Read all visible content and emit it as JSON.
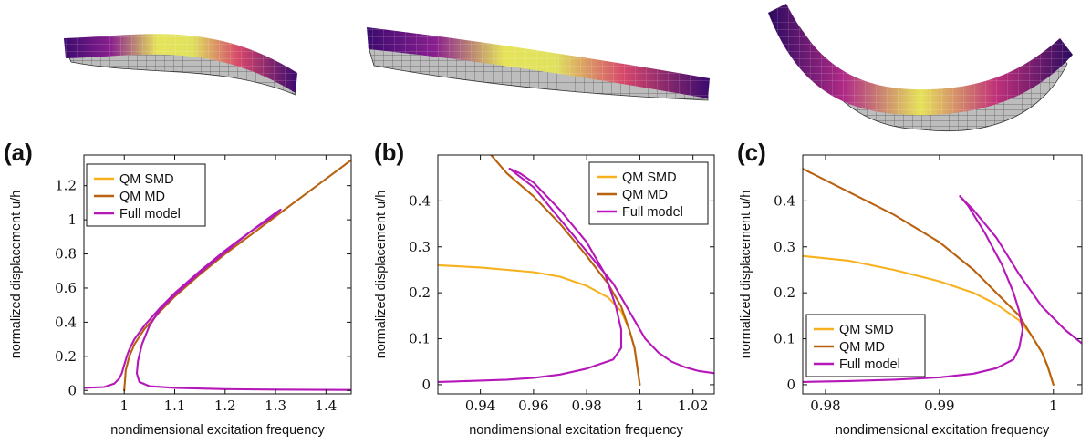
{
  "figure": {
    "series_colors": {
      "QM SMD": "#F7B11E",
      "QM MD": "#B8610F",
      "Full model": "#B517B8"
    },
    "beam_colors": [
      "#3a0a6e",
      "#8a1f8f",
      "#d6476b",
      "#f39c3a",
      "#e6f05a"
    ]
  },
  "chart_data": [
    {
      "panel": "(a)",
      "type": "line",
      "xlabel": "nondimensional excitation frequency",
      "ylabel": "normalized displacement u/h",
      "xlim": [
        0.92,
        1.45
      ],
      "ylim": [
        -0.02,
        1.38
      ],
      "xticks": [
        1,
        1.1,
        1.2,
        1.3,
        1.4
      ],
      "xtick_labels": [
        "1",
        "1.1",
        "1.2",
        "1.3",
        "1.4"
      ],
      "yticks": [
        0,
        0.2,
        0.4,
        0.6,
        0.8,
        1,
        1.2
      ],
      "ytick_labels": [
        "0",
        "0.2",
        "0.4",
        "0.6",
        "0.8",
        "1",
        "1.2"
      ],
      "legend": [
        "QM SMD",
        "QM MD",
        "Full model"
      ],
      "legend_position": "top-left",
      "series": [
        {
          "name": "QM SMD",
          "x": [
            1.0,
            1.0
          ],
          "y": [
            0.0,
            0.02
          ]
        },
        {
          "name": "QM MD",
          "x": [
            1.0,
            1.003,
            1.01,
            1.02,
            1.04,
            1.07,
            1.1,
            1.15,
            1.2,
            1.25,
            1.3,
            1.35,
            1.4,
            1.45
          ],
          "y": [
            0.0,
            0.12,
            0.2,
            0.27,
            0.36,
            0.46,
            0.55,
            0.68,
            0.8,
            0.91,
            1.02,
            1.13,
            1.24,
            1.35
          ]
        },
        {
          "name": "Full model",
          "x": [
            0.92,
            0.96,
            0.98,
            0.99,
            0.995,
            1.0,
            1.005,
            1.01,
            1.02,
            1.04,
            1.07,
            1.1,
            1.15,
            1.2,
            1.25,
            1.3,
            1.31,
            1.3,
            1.25,
            1.2,
            1.15,
            1.1,
            1.07,
            1.05,
            1.035,
            1.027,
            1.025,
            1.03,
            1.05,
            1.1,
            1.2,
            1.3,
            1.45
          ],
          "y": [
            0.015,
            0.02,
            0.04,
            0.07,
            0.1,
            0.15,
            0.2,
            0.24,
            0.3,
            0.38,
            0.48,
            0.57,
            0.7,
            0.82,
            0.93,
            1.03,
            1.06,
            1.04,
            0.93,
            0.81,
            0.69,
            0.56,
            0.47,
            0.38,
            0.27,
            0.17,
            0.1,
            0.05,
            0.025,
            0.015,
            0.008,
            0.005,
            0.003
          ]
        }
      ]
    },
    {
      "panel": "(b)",
      "type": "line",
      "xlabel": "nondimensional excitation frequency",
      "ylabel": "normalized displacement u/h",
      "xlim": [
        0.924,
        1.028
      ],
      "ylim": [
        -0.02,
        0.5
      ],
      "xticks": [
        0.94,
        0.96,
        0.98,
        1,
        1.02
      ],
      "xtick_labels": [
        "0.94",
        "0.96",
        "0.98",
        "1",
        "1.02"
      ],
      "yticks": [
        0,
        0.1,
        0.2,
        0.3,
        0.4
      ],
      "ytick_labels": [
        "0",
        "0.1",
        "0.2",
        "0.3",
        "0.4"
      ],
      "legend": [
        "QM SMD",
        "QM MD",
        "Full model"
      ],
      "legend_position": "top-right",
      "series": [
        {
          "name": "QM SMD",
          "x": [
            0.924,
            0.94,
            0.96,
            0.97,
            0.98,
            0.988,
            0.993,
            0.996,
            0.998,
            0.999,
            1.0
          ],
          "y": [
            0.26,
            0.255,
            0.245,
            0.235,
            0.215,
            0.19,
            0.16,
            0.12,
            0.08,
            0.04,
            0.0
          ]
        },
        {
          "name": "QM MD",
          "x": [
            0.944,
            0.95,
            0.96,
            0.97,
            0.98,
            0.988,
            0.993,
            0.996,
            0.998,
            0.999,
            1.0
          ],
          "y": [
            0.5,
            0.46,
            0.41,
            0.35,
            0.28,
            0.22,
            0.17,
            0.12,
            0.08,
            0.04,
            0.0
          ]
        },
        {
          "name": "Full model",
          "x": [
            0.951,
            0.955,
            0.96,
            0.97,
            0.98,
            0.987,
            0.991,
            0.993,
            0.993,
            0.99,
            0.98,
            0.97,
            0.96,
            0.95,
            0.94,
            0.93,
            0.924
          ],
          "y": [
            0.47,
            0.46,
            0.44,
            0.38,
            0.31,
            0.24,
            0.17,
            0.12,
            0.08,
            0.055,
            0.035,
            0.022,
            0.015,
            0.011,
            0.009,
            0.007,
            0.006
          ]
        },
        {
          "name": "Full model",
          "x": [
            0.951,
            0.96,
            0.97,
            0.98,
            0.99,
            0.997,
            1.002,
            1.007,
            1.012,
            1.017,
            1.022,
            1.028
          ],
          "y": [
            0.47,
            0.43,
            0.36,
            0.29,
            0.22,
            0.15,
            0.1,
            0.07,
            0.05,
            0.038,
            0.03,
            0.025
          ]
        }
      ]
    },
    {
      "panel": "(c)",
      "type": "line",
      "xlabel": "nondimensional excitation frequency",
      "ylabel": "normalized displacement u/h",
      "xlim": [
        0.978,
        1.0025
      ],
      "ylim": [
        -0.02,
        0.5
      ],
      "xticks": [
        0.98,
        0.99,
        1
      ],
      "xtick_labels": [
        "0.98",
        "0.99",
        "1"
      ],
      "yticks": [
        0,
        0.1,
        0.2,
        0.3,
        0.4
      ],
      "ytick_labels": [
        "0",
        "0.1",
        "0.2",
        "0.3",
        "0.4"
      ],
      "legend": [
        "QM SMD",
        "QM MD",
        "Full model"
      ],
      "legend_position": "bottom-left",
      "series": [
        {
          "name": "QM SMD",
          "x": [
            0.978,
            0.982,
            0.986,
            0.99,
            0.993,
            0.995,
            0.997,
            0.998,
            0.999,
            0.9995,
            1.0
          ],
          "y": [
            0.28,
            0.27,
            0.25,
            0.225,
            0.2,
            0.175,
            0.14,
            0.11,
            0.07,
            0.04,
            0.0
          ]
        },
        {
          "name": "QM MD",
          "x": [
            0.978,
            0.982,
            0.986,
            0.99,
            0.993,
            0.995,
            0.997,
            0.998,
            0.999,
            0.9995,
            1.0
          ],
          "y": [
            0.47,
            0.42,
            0.37,
            0.31,
            0.25,
            0.2,
            0.15,
            0.11,
            0.07,
            0.04,
            0.0
          ]
        },
        {
          "name": "Full model",
          "x": [
            0.978,
            0.982,
            0.986,
            0.99,
            0.993,
            0.995,
            0.9965,
            0.997,
            0.9973,
            0.997,
            0.9965,
            0.9955,
            0.994,
            0.9925,
            0.9918
          ],
          "y": [
            0.006,
            0.008,
            0.011,
            0.016,
            0.024,
            0.036,
            0.055,
            0.08,
            0.12,
            0.16,
            0.2,
            0.26,
            0.33,
            0.39,
            0.41
          ]
        },
        {
          "name": "Full model",
          "x": [
            0.9918,
            0.993,
            0.995,
            0.997,
            0.999,
            1.001,
            1.0025
          ],
          "y": [
            0.41,
            0.38,
            0.32,
            0.24,
            0.17,
            0.12,
            0.09
          ]
        }
      ]
    }
  ]
}
